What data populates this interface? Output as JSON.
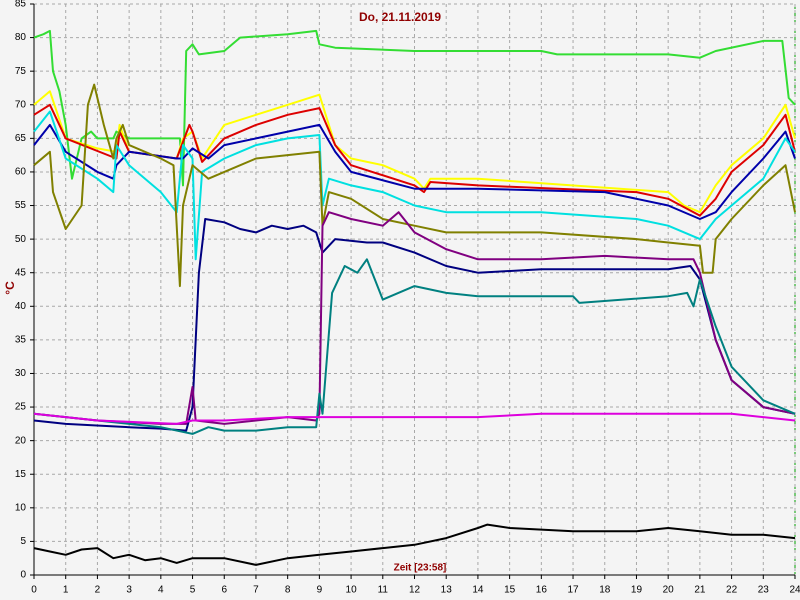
{
  "chart_data": {
    "type": "line",
    "title": "Do, 21.11.2019",
    "ylabel": "°C",
    "xlabel": "Zeit [23:58]",
    "xlim": [
      0,
      24
    ],
    "ylim": [
      0,
      85
    ],
    "xticks": [
      0,
      1,
      2,
      3,
      4,
      5,
      6,
      7,
      8,
      9,
      10,
      11,
      12,
      13,
      14,
      15,
      16,
      17,
      18,
      19,
      20,
      21,
      22,
      23,
      24
    ],
    "yticks": [
      0,
      5,
      10,
      15,
      20,
      25,
      30,
      35,
      40,
      45,
      50,
      55,
      60,
      65,
      70,
      75,
      80,
      85
    ],
    "grid": true,
    "series": [
      {
        "color": "#33dd33",
        "x": [
          0,
          0.3,
          0.5,
          0.6,
          0.8,
          1,
          1.2,
          1.3,
          1.5,
          1.8,
          2,
          2.5,
          2.6,
          3,
          4,
          4.6,
          4.7,
          4.8,
          5,
          5.2,
          6,
          6.5,
          8,
          8.9,
          9,
          9.5,
          12,
          16,
          16.5,
          20,
          21,
          21.5,
          23,
          23.6,
          23.8,
          24
        ],
        "values": [
          80,
          80.5,
          81,
          75,
          72,
          67,
          59,
          61,
          65,
          66,
          65,
          65,
          66,
          65,
          65,
          65,
          58,
          78,
          79,
          77.5,
          78,
          80,
          80.5,
          81,
          79,
          78.5,
          78,
          78,
          77.5,
          77.5,
          77,
          78,
          79.5,
          79.5,
          71,
          70
        ]
      },
      {
        "color": "#ffff00",
        "x": [
          0,
          0.5,
          1,
          2,
          2.6,
          2.7,
          3,
          4.5,
          4.7,
          5,
          5.3,
          6,
          7,
          8,
          9,
          9.5,
          10,
          11,
          12,
          12.3,
          12.5,
          14,
          20,
          20.5,
          21,
          21.5,
          22,
          23,
          23.7,
          24
        ],
        "values": [
          70,
          72,
          65,
          63.5,
          63,
          67,
          63,
          62,
          65,
          66,
          62,
          67,
          68.5,
          70,
          71.5,
          64,
          62,
          61,
          59,
          57.5,
          59,
          59,
          57,
          55,
          54,
          58,
          61,
          65,
          70,
          65
        ]
      },
      {
        "color": "#dd0000",
        "x": [
          0,
          0.5,
          1,
          2.6,
          2.7,
          3,
          4.5,
          4.9,
          5,
          5.3,
          5.6,
          6,
          7,
          8,
          9,
          9.5,
          10,
          12,
          12.3,
          12.5,
          14,
          19,
          20,
          21,
          21.5,
          22,
          23,
          23.7,
          24
        ],
        "values": [
          68.5,
          70,
          65,
          62,
          66,
          63,
          62,
          67,
          66,
          61.5,
          63,
          65,
          67,
          68.5,
          69.5,
          64,
          61,
          58,
          57,
          58.5,
          58,
          57,
          56,
          53.5,
          56,
          60,
          64,
          68.5,
          63
        ]
      },
      {
        "color": "#0000aa",
        "x": [
          0,
          0.5,
          1,
          2,
          2.5,
          2.6,
          3,
          4.5,
          4.7,
          5,
          5.5,
          6,
          7,
          8,
          9,
          9.5,
          10,
          12,
          14,
          18,
          20,
          21,
          21.5,
          22,
          23,
          23.7,
          24
        ],
        "values": [
          64,
          67,
          63,
          60,
          59,
          61,
          63,
          62,
          62,
          63.5,
          62,
          64,
          65,
          66,
          67,
          63,
          60,
          57.5,
          57.5,
          57,
          55,
          53,
          54,
          57,
          62,
          66,
          62
        ]
      },
      {
        "color": "#00e0e0",
        "x": [
          0,
          0.5,
          1,
          2,
          2.5,
          2.6,
          3,
          4,
          4.5,
          4.7,
          5,
          5.1,
          5.3,
          6,
          7,
          8,
          9,
          9.1,
          9.3,
          10,
          11,
          12,
          13,
          16,
          19,
          20,
          21,
          21.5,
          22,
          23,
          23.7,
          24
        ],
        "values": [
          66,
          69,
          62,
          59,
          57,
          64,
          61,
          57,
          54,
          64,
          62,
          47,
          60,
          62,
          64,
          65,
          65.5,
          55,
          59,
          58,
          57,
          55,
          54,
          54,
          53,
          52,
          50,
          53,
          55,
          59,
          65,
          63
        ]
      },
      {
        "color": "#808000",
        "x": [
          0,
          0.5,
          0.6,
          1,
          1.5,
          1.7,
          1.9,
          2.2,
          2.5,
          2.6,
          2.8,
          3,
          4,
          4.4,
          4.6,
          4.7,
          5,
          5.5,
          6,
          7,
          8,
          9,
          9.1,
          9.3,
          10,
          11,
          12,
          13,
          16,
          19,
          20,
          21,
          21.1,
          21.4,
          21.5,
          22,
          23,
          23.7,
          24
        ],
        "values": [
          61,
          63,
          57,
          51.5,
          55,
          70,
          73,
          67,
          62,
          65,
          67,
          64,
          62,
          61,
          43,
          55,
          61,
          59,
          60,
          62,
          62.5,
          63,
          52,
          57,
          56,
          53,
          52,
          51,
          51,
          50,
          49.5,
          49,
          45,
          45,
          50,
          53,
          58,
          61,
          54
        ]
      },
      {
        "color": "#000080",
        "x": [
          0,
          1,
          3,
          4,
          4.8,
          5,
          5.2,
          5.4,
          6,
          6.5,
          7,
          7.5,
          8,
          8.5,
          8.9,
          9.1,
          9.5,
          10.5,
          11,
          12,
          13,
          14,
          16,
          18,
          20,
          20.7,
          21,
          21.5,
          22,
          23,
          24
        ],
        "values": [
          23,
          22.5,
          22,
          21.8,
          21.5,
          25,
          45,
          53,
          52.5,
          51.5,
          51,
          52,
          51.5,
          52,
          51,
          48,
          50,
          49.5,
          49.5,
          48,
          46,
          45,
          45.5,
          45.5,
          45.5,
          46,
          44,
          35,
          29,
          25,
          24
        ]
      },
      {
        "color": "#800080",
        "x": [
          0,
          2,
          4,
          4.8,
          5,
          5.1,
          6,
          7,
          8,
          8.9,
          9,
          9.1,
          9.3,
          10,
          11,
          11.5,
          12,
          13,
          14,
          16,
          18,
          20,
          20.8,
          21,
          21.5,
          22,
          23,
          24
        ],
        "values": [
          24,
          23,
          22.5,
          22.5,
          28,
          23,
          22.5,
          23,
          23.5,
          23,
          24,
          52,
          54,
          53,
          52,
          54,
          51,
          48.5,
          47,
          47,
          47.5,
          47,
          47,
          45,
          35,
          29,
          25,
          24
        ]
      },
      {
        "color": "#008080",
        "x": [
          0,
          2,
          4,
          5,
          5.5,
          6,
          7,
          8,
          8.9,
          9,
          9.1,
          9.4,
          9.8,
          10.2,
          10.5,
          11,
          12,
          13,
          14,
          17,
          17.2,
          20,
          20.6,
          20.8,
          21,
          21.5,
          22,
          23,
          24
        ],
        "values": [
          24,
          23,
          22,
          21,
          22,
          21.5,
          21.5,
          22,
          22,
          27,
          24,
          42,
          46,
          45,
          47,
          41,
          43,
          42,
          41.5,
          41.5,
          40.5,
          41.5,
          42,
          40,
          44,
          37,
          31,
          26,
          24
        ]
      },
      {
        "color": "#dd00dd",
        "x": [
          0,
          2,
          4.5,
          5,
          6,
          8,
          9,
          14,
          16,
          20,
          22,
          23,
          24
        ],
        "values": [
          24,
          23,
          22.5,
          23,
          23,
          23.5,
          23.5,
          23.5,
          24,
          24,
          24,
          23.5,
          23
        ]
      },
      {
        "color": "#000000",
        "x": [
          0,
          0.5,
          1,
          1.5,
          2,
          2.5,
          3,
          3.5,
          4,
          4.5,
          5,
          6,
          7,
          8,
          9,
          10,
          11,
          12,
          13,
          14,
          14.3,
          15,
          17,
          19,
          20,
          21,
          22,
          23,
          24
        ],
        "values": [
          4,
          3.5,
          3,
          3.8,
          4,
          2.5,
          3,
          2.2,
          2.5,
          1.8,
          2.5,
          2.5,
          1.5,
          2.5,
          3,
          3.5,
          4,
          4.5,
          5.5,
          7,
          7.5,
          7,
          6.5,
          6.5,
          7,
          6.5,
          6,
          6,
          5.5
        ]
      }
    ]
  }
}
